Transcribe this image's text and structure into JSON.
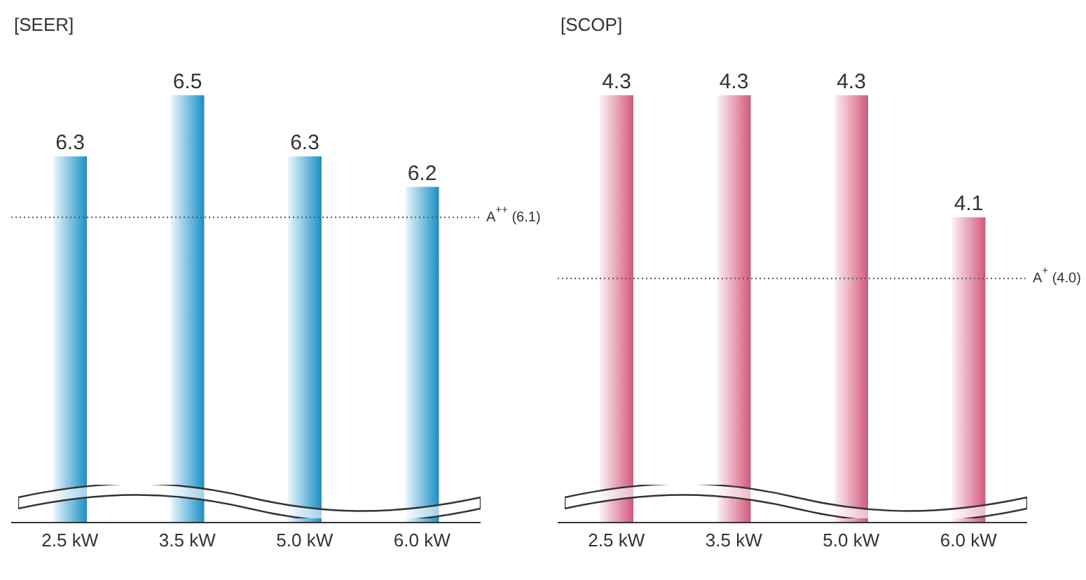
{
  "chart_data": [
    {
      "type": "bar",
      "title": "[SEER]",
      "categories": [
        "2.5 kW",
        "3.5 kW",
        "5.0 kW",
        "6.0 kW"
      ],
      "values": [
        6.3,
        6.5,
        6.3,
        6.2
      ],
      "color": "#1a8fc6",
      "ylim": [
        5.1,
        6.5
      ],
      "data_labels": true,
      "tick_labels": "x",
      "ref_lines": [
        {
          "axis": "y",
          "value": 6.1,
          "label": "A$^{++}$ (6.1)",
          "line_style": "dotted",
          "color": "#555555"
        }
      ]
    },
    {
      "type": "bar",
      "title": "[SCOP]",
      "categories": [
        "2.5 kW",
        "3.5 kW",
        "5.0 kW",
        "6.0 kW"
      ],
      "values": [
        4.3,
        4.3,
        4.3,
        4.1
      ],
      "color": "#d2587c",
      "ylim": [
        3.6,
        4.3
      ],
      "data_labels": true,
      "tick_labels": "x",
      "ref_lines": [
        {
          "axis": "y",
          "value": 4.0,
          "label": "A$^{+}$ (4.0)",
          "line_style": "dotted",
          "color": "#555555"
        }
      ]
    }
  ]
}
